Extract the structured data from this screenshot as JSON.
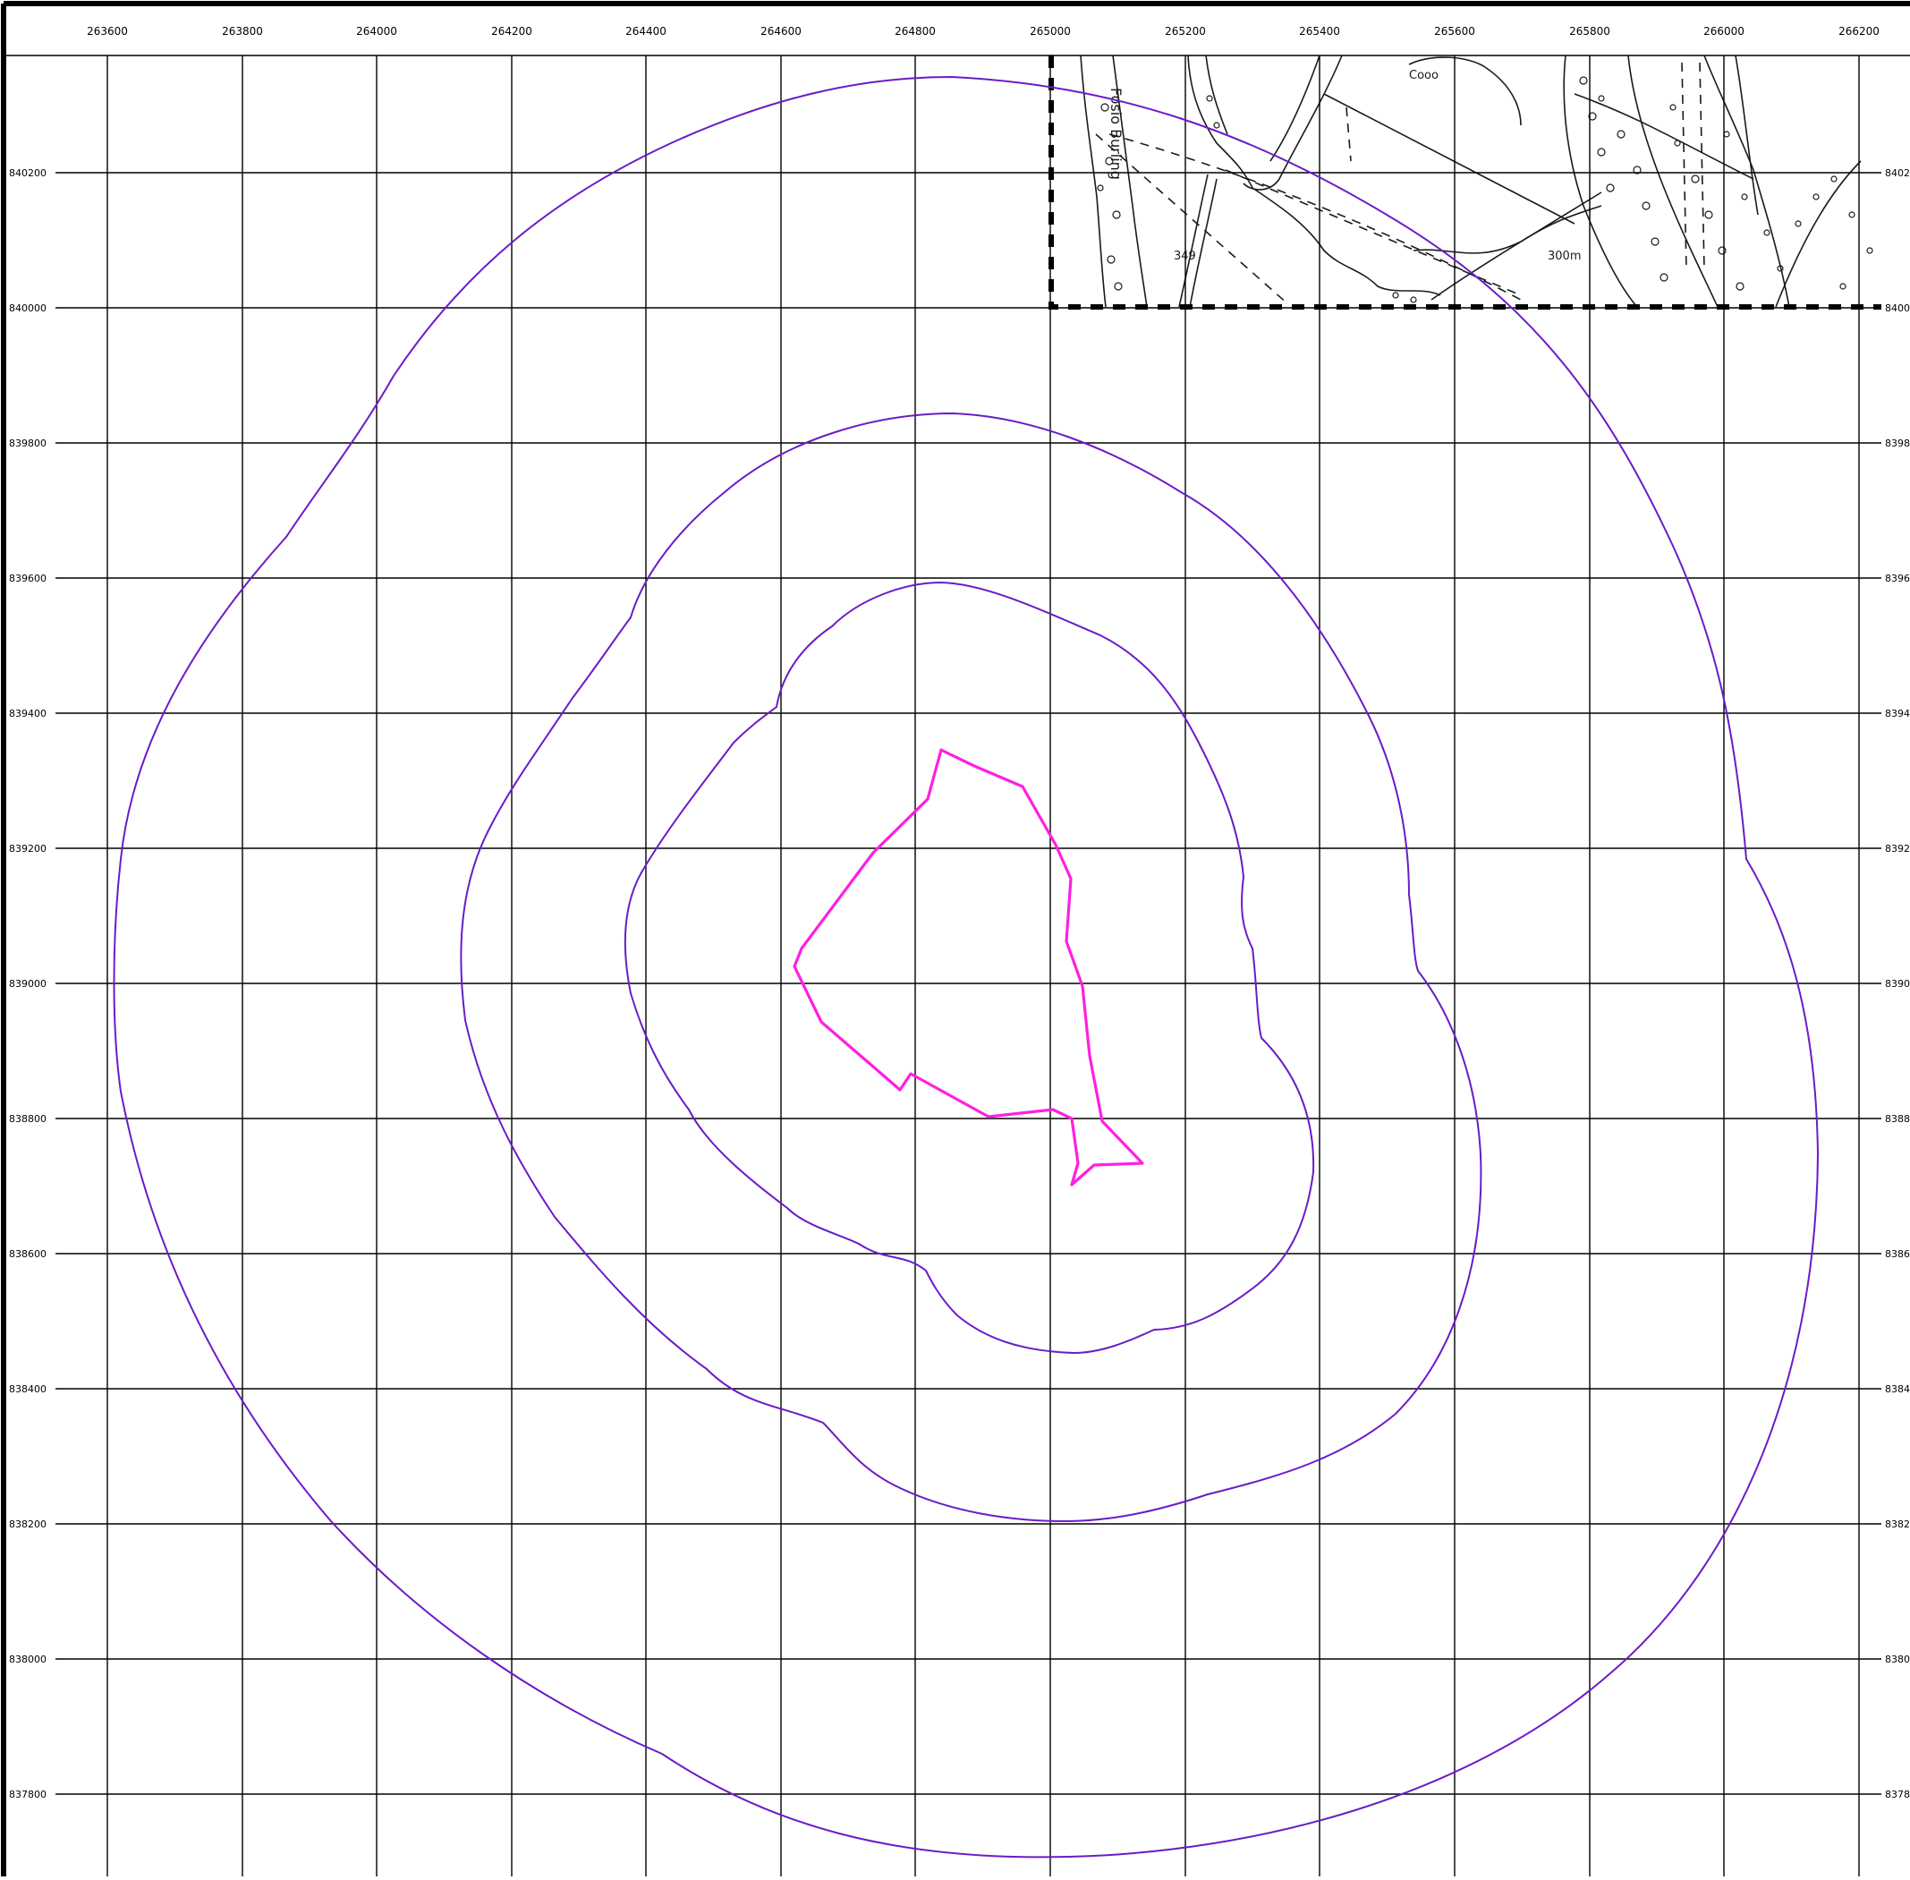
{
  "map": {
    "top_ticks": [
      "263600",
      "263800",
      "264000",
      "264200",
      "264400",
      "264600",
      "264800",
      "265000",
      "265200",
      "265400",
      "265600",
      "265800",
      "266000",
      "266200"
    ],
    "left_ticks": [
      "840200",
      "840000",
      "839800",
      "839600",
      "839400",
      "839200",
      "839000",
      "838800",
      "838600",
      "838400",
      "838200",
      "838000",
      "837800"
    ],
    "right_ticks": [
      "8402",
      "8400",
      "8398",
      "8396",
      "8394",
      "8392",
      "8390",
      "8388",
      "8386",
      "8384",
      "8382",
      "8380",
      "8378"
    ],
    "inset_labels": {
      "stream": "Fosio Burling",
      "spot_height": "349",
      "contour_1": "Cooo",
      "contour_2": "300m"
    }
  },
  "colors": {
    "frame": "#000000",
    "grid": "#000000",
    "contour": "#6a1cc8",
    "boundary": "#ff1fe0",
    "inset_border": "#000000",
    "inset_lines": "#1a1a1a"
  }
}
